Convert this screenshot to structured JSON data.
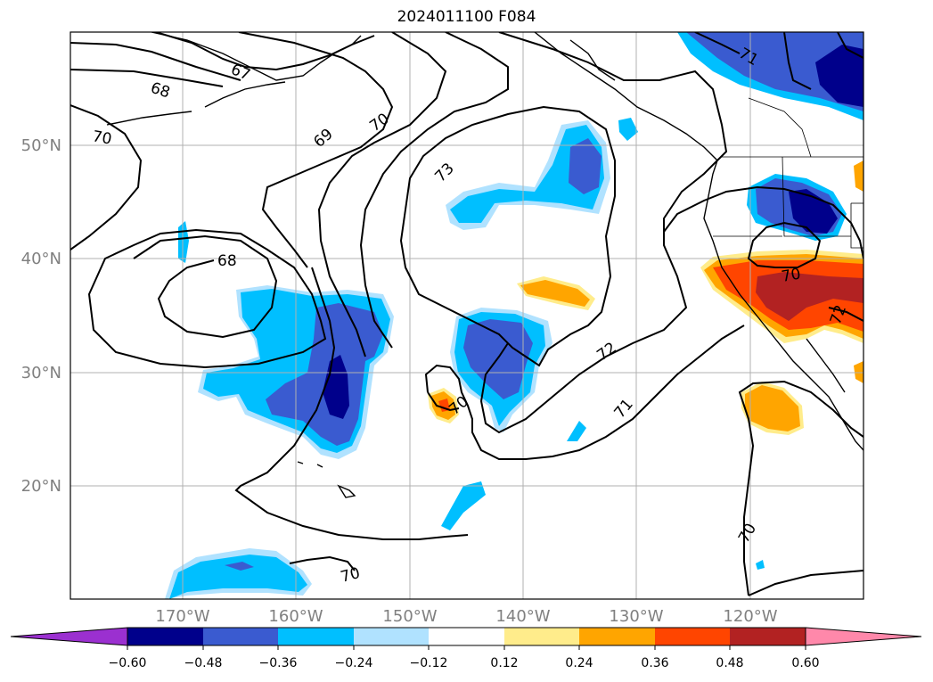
{
  "title": "2024011100 F084",
  "map": {
    "lat_labels": [
      "50°N",
      "40°N",
      "30°N",
      "20°N"
    ],
    "lon_labels": [
      "170°W",
      "160°W",
      "150°W",
      "140°W",
      "130°W",
      "120°W"
    ],
    "grid": true,
    "contour_labels": [
      "67",
      "68",
      "70",
      "69",
      "70",
      "73",
      "68",
      "71",
      "70",
      "72",
      "71",
      "70",
      "70",
      "72",
      "70"
    ],
    "colors": {
      "land_coast": "#000000",
      "contour": "#000000",
      "grid": "#b0b0b0",
      "axis_label": "#808080"
    }
  },
  "colorbar": {
    "ticks": [
      "−0.60",
      "−0.48",
      "−0.36",
      "−0.24",
      "−0.12",
      "0.12",
      "0.24",
      "0.36",
      "0.48",
      "0.60"
    ],
    "colors": [
      "#9b30d0",
      "#00008b",
      "#3a5bd0",
      "#00bfff",
      "#b0e2ff",
      "#ffffff",
      "#ffec8b",
      "#ffa500",
      "#ff4500",
      "#b22222",
      "#ff88aa"
    ]
  }
}
